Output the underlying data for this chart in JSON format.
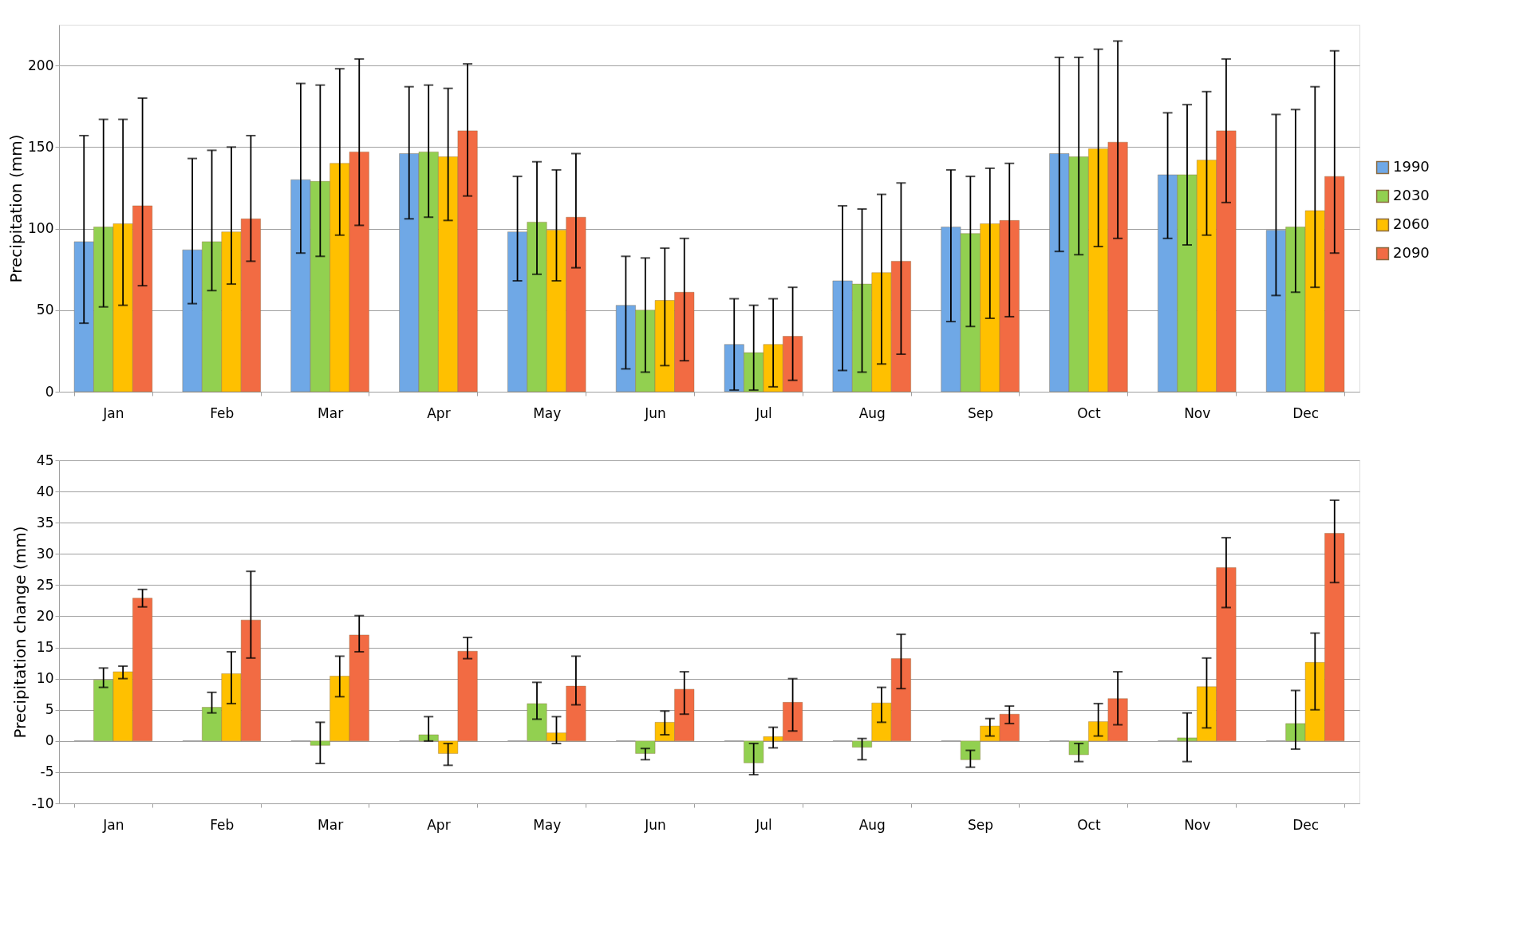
{
  "chart_data": [
    {
      "type": "bar",
      "ylabel": "Precipitation (mm)",
      "categories": [
        "Jan",
        "Feb",
        "Mar",
        "Apr",
        "May",
        "Jun",
        "Jul",
        "Aug",
        "Sep",
        "Oct",
        "Nov",
        "Dec"
      ],
      "ylim": [
        0,
        225
      ],
      "yticks": [
        0,
        50,
        100,
        150,
        200
      ],
      "grid": "y",
      "legend": "right",
      "series": [
        {
          "name": "1990",
          "color": "#6fa8e6",
          "values": [
            92,
            87,
            130,
            146,
            98,
            53,
            29,
            68,
            101,
            146,
            133,
            99
          ],
          "errors": [
            [
              42,
              157
            ],
            [
              54,
              143
            ],
            [
              85,
              189
            ],
            [
              106,
              187
            ],
            [
              68,
              132
            ],
            [
              14,
              83
            ],
            [
              1,
              57
            ],
            [
              13,
              114
            ],
            [
              43,
              136
            ],
            [
              86,
              205
            ],
            [
              94,
              171
            ],
            [
              59,
              170
            ]
          ]
        },
        {
          "name": "2030",
          "color": "#92d050",
          "values": [
            101,
            92,
            129,
            147,
            104,
            50,
            24,
            66,
            97,
            144,
            133,
            101
          ],
          "errors": [
            [
              52,
              167
            ],
            [
              62,
              148
            ],
            [
              83,
              188
            ],
            [
              107,
              188
            ],
            [
              72,
              141
            ],
            [
              12,
              82
            ],
            [
              1,
              53
            ],
            [
              12,
              112
            ],
            [
              40,
              132
            ],
            [
              84,
              205
            ],
            [
              90,
              176
            ],
            [
              61,
              173
            ]
          ]
        },
        {
          "name": "2060",
          "color": "#ffc000",
          "values": [
            103,
            98,
            140,
            144,
            99,
            56,
            29,
            73,
            103,
            149,
            142,
            111
          ],
          "errors": [
            [
              53,
              167
            ],
            [
              66,
              150
            ],
            [
              96,
              198
            ],
            [
              105,
              186
            ],
            [
              68,
              136
            ],
            [
              16,
              88
            ],
            [
              3,
              57
            ],
            [
              17,
              121
            ],
            [
              45,
              137
            ],
            [
              89,
              210
            ],
            [
              96,
              184
            ],
            [
              64,
              187
            ]
          ]
        },
        {
          "name": "2090",
          "color": "#f26b43",
          "values": [
            114,
            106,
            147,
            160,
            107,
            61,
            34,
            80,
            105,
            153,
            160,
            132
          ],
          "errors": [
            [
              65,
              180
            ],
            [
              80,
              157
            ],
            [
              102,
              204
            ],
            [
              120,
              201
            ],
            [
              76,
              146
            ],
            [
              19,
              94
            ],
            [
              7,
              64
            ],
            [
              23,
              128
            ],
            [
              46,
              140
            ],
            [
              94,
              215
            ],
            [
              116,
              204
            ],
            [
              85,
              209
            ]
          ]
        }
      ]
    },
    {
      "type": "bar",
      "ylabel": "Precipitation change (mm)",
      "categories": [
        "Jan",
        "Feb",
        "Mar",
        "Apr",
        "May",
        "Jun",
        "Jul",
        "Aug",
        "Sep",
        "Oct",
        "Nov",
        "Dec"
      ],
      "ylim": [
        -10,
        45
      ],
      "yticks": [
        -10,
        -5,
        0,
        5,
        10,
        15,
        20,
        25,
        30,
        35,
        40,
        45
      ],
      "grid": "y",
      "legend": "right",
      "series": [
        {
          "color": "#a6a6a6",
          "values": [
            0,
            0,
            0,
            0,
            0,
            0,
            0,
            0,
            0,
            0,
            0,
            0
          ]
        },
        {
          "name": "2030",
          "color": "#92d050",
          "values": [
            9.8,
            5.4,
            -0.7,
            1.0,
            6.0,
            -2.0,
            -3.5,
            -1.0,
            -3.0,
            -2.2,
            0.5,
            2.8
          ],
          "errors": [
            [
              8.6,
              11.7
            ],
            [
              4.5,
              7.8
            ],
            [
              -3.6,
              3.0
            ],
            [
              0.0,
              3.9
            ],
            [
              3.5,
              9.4
            ],
            [
              -3.0,
              -1.2
            ],
            [
              -5.4,
              -0.4
            ],
            [
              -3.0,
              0.4
            ],
            [
              -4.2,
              -1.5
            ],
            [
              -3.3,
              -0.4
            ],
            [
              -3.3,
              4.5
            ],
            [
              -1.3,
              8.1
            ]
          ]
        },
        {
          "name": "2060",
          "color": "#ffc000",
          "values": [
            11.1,
            10.8,
            10.4,
            -2.0,
            1.3,
            3.0,
            0.7,
            6.1,
            2.4,
            3.1,
            8.7,
            12.6
          ],
          "errors": [
            [
              10.0,
              12.0
            ],
            [
              6.0,
              14.3
            ],
            [
              7.1,
              13.6
            ],
            [
              -3.9,
              -0.4
            ],
            [
              -0.4,
              3.9
            ],
            [
              1.0,
              4.8
            ],
            [
              -1.1,
              2.2
            ],
            [
              3.0,
              8.6
            ],
            [
              0.8,
              3.6
            ],
            [
              0.8,
              6.0
            ],
            [
              2.1,
              13.3
            ],
            [
              5.0,
              17.3
            ]
          ]
        },
        {
          "name": "2090",
          "color": "#f26b43",
          "values": [
            22.9,
            19.4,
            17.0,
            14.4,
            8.8,
            8.3,
            6.2,
            13.2,
            4.3,
            6.8,
            27.8,
            33.3
          ],
          "errors": [
            [
              21.5,
              24.3
            ],
            [
              13.3,
              27.2
            ],
            [
              14.3,
              20.1
            ],
            [
              13.2,
              16.6
            ],
            [
              5.8,
              13.6
            ],
            [
              4.3,
              11.1
            ],
            [
              1.6,
              10.0
            ],
            [
              8.4,
              17.1
            ],
            [
              2.8,
              5.6
            ],
            [
              2.6,
              11.1
            ],
            [
              21.4,
              32.6
            ],
            [
              25.4,
              38.6
            ]
          ]
        }
      ]
    }
  ]
}
